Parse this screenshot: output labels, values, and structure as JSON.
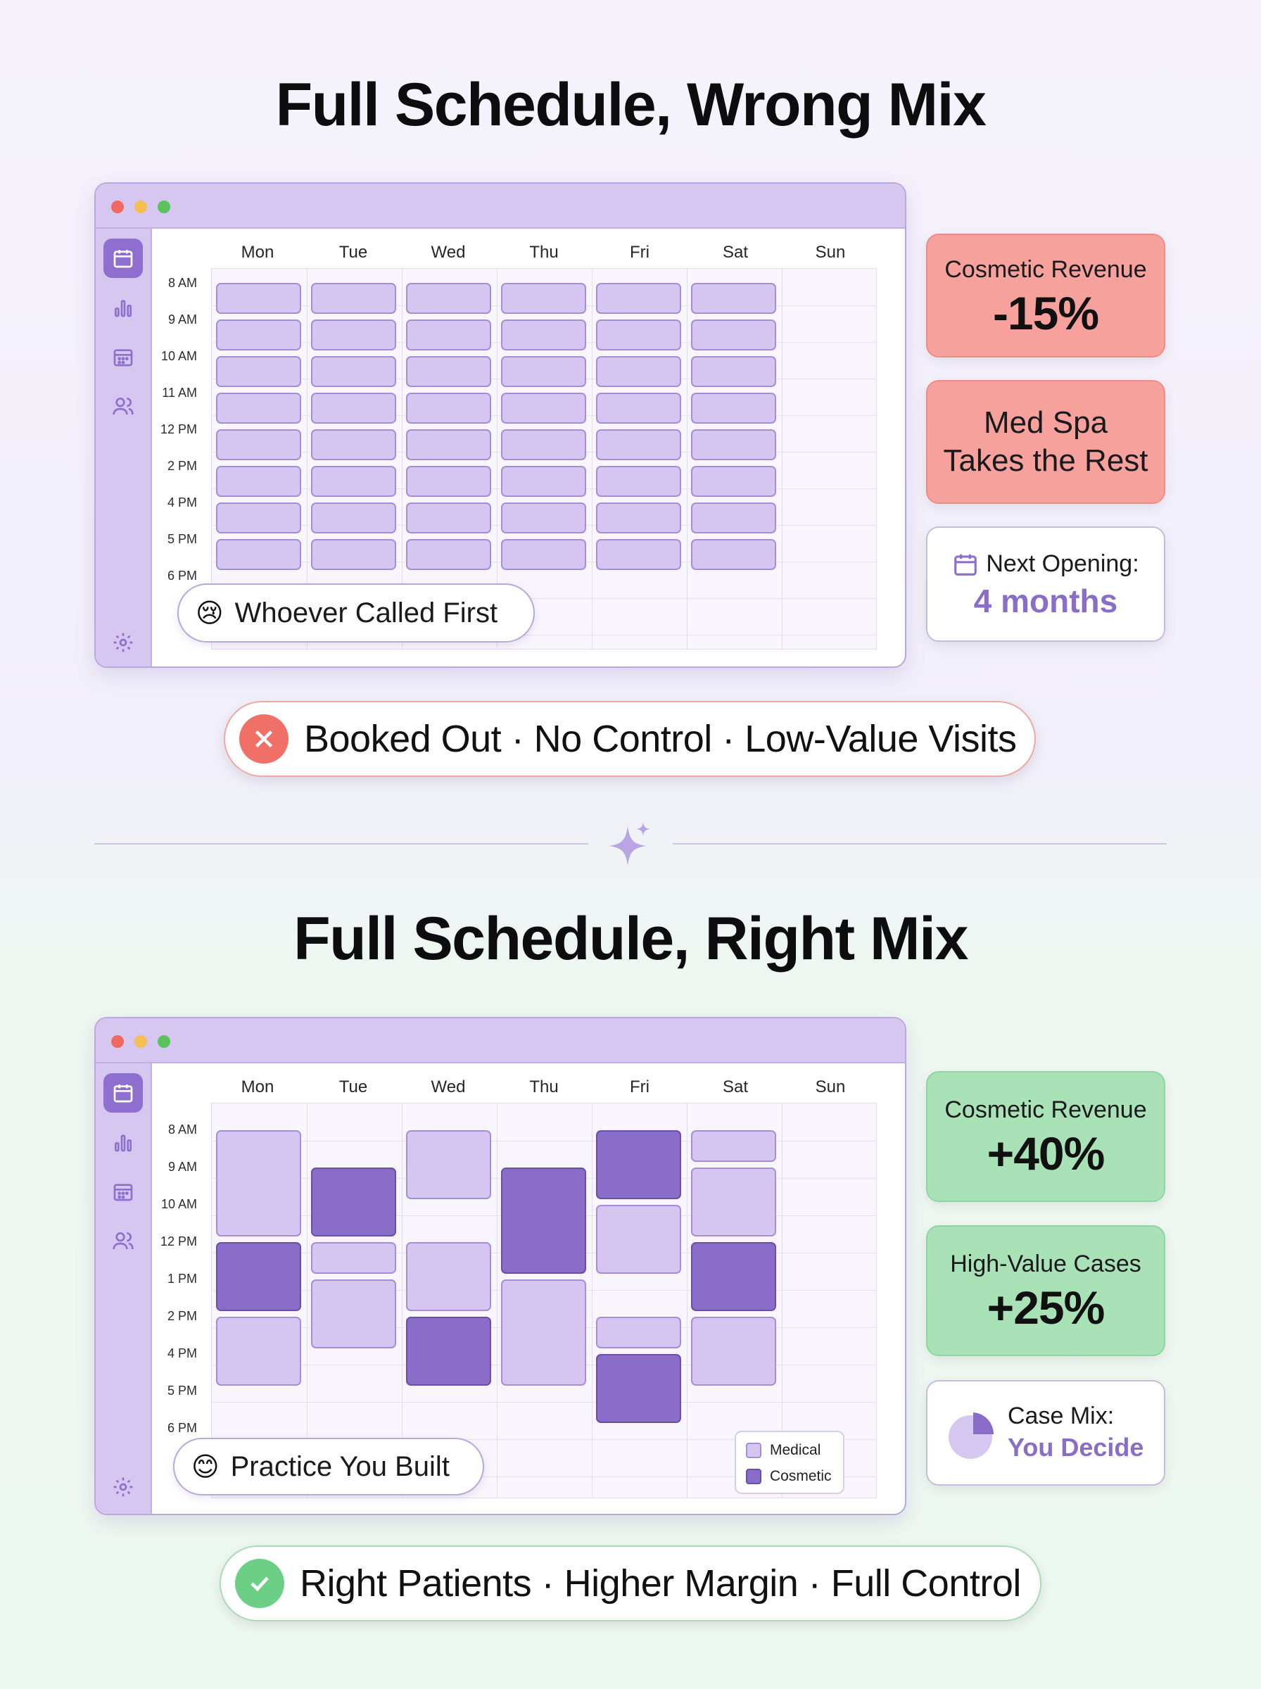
{
  "top": {
    "title": "Full Schedule, Wrong Mix",
    "days": [
      "Mon",
      "Tue",
      "Wed",
      "Thu",
      "Fri",
      "Sat",
      "Sun"
    ],
    "times": [
      "8 AM",
      "9 AM",
      "10 AM",
      "11 AM",
      "12 PM",
      "2 PM",
      "4 PM",
      "5 PM",
      "6 PM"
    ],
    "pill_emoji": "😢",
    "pill_text": "Whoever Called First",
    "cards": [
      {
        "label": "Cosmetic Revenue",
        "value": "-15%"
      },
      {
        "label_line1": "Med Spa",
        "label_line2": "Takes the Rest"
      },
      {
        "label": "Next Opening:",
        "value": "4 months"
      }
    ],
    "banner": "Booked Out · No Control · Low-Value Visits"
  },
  "bottom": {
    "title": "Full Schedule, Right Mix",
    "days": [
      "Mon",
      "Tue",
      "Wed",
      "Thu",
      "Fri",
      "Sat",
      "Sun"
    ],
    "times": [
      "8 AM",
      "9 AM",
      "10 AM",
      "12 PM",
      "1 PM",
      "2 PM",
      "4 PM",
      "5 PM",
      "6 PM"
    ],
    "pill_emoji": "😊",
    "pill_text": "Practice You Built",
    "legend": {
      "medical": "Medical",
      "cosmetic": "Cosmetic"
    },
    "cards": [
      {
        "label": "Cosmetic Revenue",
        "value": "+40%"
      },
      {
        "label": "High-Value Cases",
        "value": "+25%"
      },
      {
        "label": "Case Mix:",
        "value": "You Decide"
      }
    ],
    "banner": "Right Patients · Higher Margin · Full Control"
  },
  "colors": {
    "medical": "#d4c5f1",
    "cosmetic": "#8a6cc9",
    "window_chrome": "#d6c7f1",
    "negative_card": "#f7a19c",
    "positive_card": "#a9e2b7",
    "accent_purple": "#8e6fcf"
  },
  "icons": [
    "calendar-icon",
    "bar-chart-icon",
    "calendar-grid-icon",
    "users-icon",
    "settings-gear-icon",
    "close-x-icon",
    "check-icon",
    "sparkle-icon",
    "pie-chart-icon"
  ]
}
